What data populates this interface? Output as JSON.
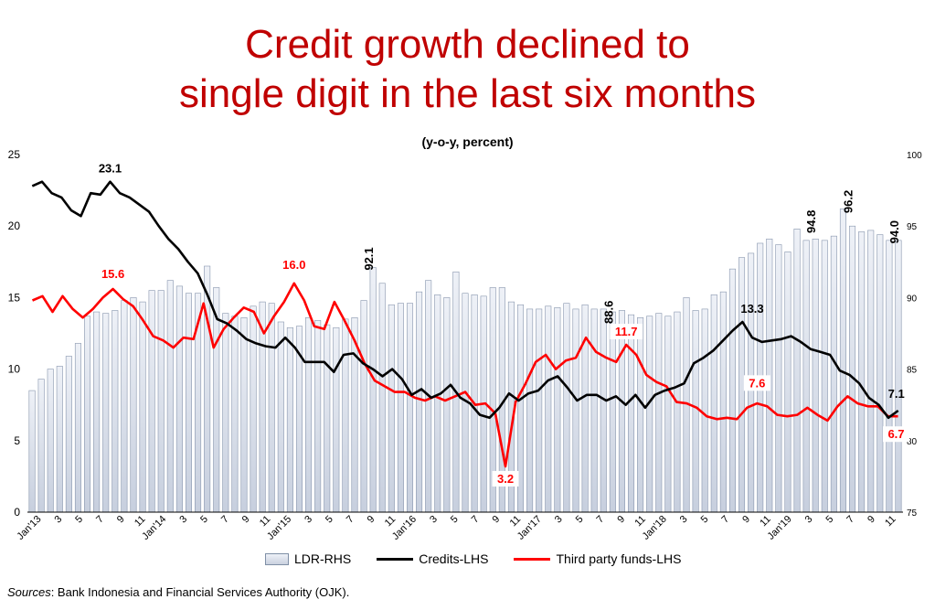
{
  "title_line1": "Credit growth declined to",
  "title_line2": "single digit in the last six months",
  "subtitle": "(y-o-y, percent)",
  "source_label": "Sources",
  "source_text": ": Bank Indonesia and Financial Services Authority (OJK).",
  "legend": {
    "ldr": "LDR-RHS",
    "credit": "Credits-LHS",
    "tpf": "Third party funds-LHS"
  },
  "colors": {
    "credit": "#000000",
    "tpf": "#ff0000",
    "bar_fill": "#d5dbe7",
    "bar_edge": "#8795ad",
    "label_red": "#ff0000"
  },
  "chart_data": {
    "type": "bar+line",
    "x_tick_labels": [
      "Jan'13",
      "3",
      "5",
      "7",
      "9",
      "11",
      "Jan'14",
      "3",
      "5",
      "7",
      "9",
      "11",
      "Jan'15",
      "3",
      "5",
      "7",
      "9",
      "11",
      "Jan'16",
      "3",
      "5",
      "7",
      "9",
      "11",
      "Jan'17",
      "3",
      "5",
      "7",
      "9",
      "11",
      "Jan'18",
      "3",
      "5",
      "7",
      "9",
      "11",
      "Jan'19",
      "3",
      "5",
      "7",
      "9",
      "11"
    ],
    "y_left": {
      "min": 0,
      "max": 25,
      "ticks": [
        0,
        5,
        10,
        15,
        20,
        25
      ]
    },
    "y_right": {
      "min": 75,
      "max": 100,
      "ticks": [
        75,
        80,
        85,
        90,
        95,
        100
      ]
    },
    "series": [
      {
        "name": "LDR-RHS",
        "axis": "right",
        "kind": "bar",
        "values": [
          83.5,
          84.3,
          85.0,
          85.2,
          85.9,
          86.8,
          88.7,
          89.0,
          88.9,
          89.1,
          89.8,
          90.0,
          89.7,
          90.5,
          90.5,
          91.2,
          90.8,
          90.3,
          90.3,
          92.2,
          90.7,
          88.9,
          88.7,
          88.6,
          89.4,
          89.7,
          89.6,
          88.3,
          87.9,
          88.0,
          88.6,
          88.4,
          88.1,
          87.9,
          88.5,
          88.6,
          89.8,
          92.1,
          91.0,
          89.5,
          89.6,
          89.6,
          90.4,
          91.2,
          90.2,
          90.0,
          91.8,
          90.3,
          90.2,
          90.1,
          90.7,
          90.7,
          89.7,
          89.5,
          89.2,
          89.2,
          89.4,
          89.3,
          89.6,
          89.2,
          89.5,
          89.2,
          89.2,
          89.0,
          89.1,
          88.8,
          88.6,
          88.7,
          88.9,
          88.7,
          89.0,
          90.0,
          89.1,
          89.2,
          90.2,
          90.4,
          92.0,
          92.8,
          93.1,
          93.8,
          94.1,
          93.7,
          93.2,
          94.8,
          94.0,
          94.1,
          94.0,
          94.3,
          96.2,
          95.0,
          94.6,
          94.7,
          94.4,
          94.0,
          94.0
        ],
        "labels": {
          "92.1": 37,
          "88.6": 63,
          "94.8": 85,
          "96.2": 89,
          "94.0": 94
        }
      },
      {
        "name": "Credits-LHS",
        "axis": "left",
        "kind": "line",
        "values": [
          22.8,
          23.1,
          22.3,
          22.0,
          21.1,
          20.7,
          22.3,
          22.2,
          23.1,
          22.3,
          22.0,
          21.5,
          21.0,
          20.0,
          19.1,
          18.4,
          17.5,
          16.7,
          15.2,
          13.5,
          13.2,
          12.7,
          12.1,
          11.8,
          11.6,
          11.5,
          12.2,
          11.5,
          10.5,
          10.5,
          10.5,
          9.8,
          11.0,
          11.1,
          10.4,
          10.0,
          9.5,
          10.0,
          9.3,
          8.2,
          8.6,
          8.0,
          8.3,
          8.9,
          8.0,
          7.6,
          6.8,
          6.6,
          7.3,
          8.3,
          7.8,
          8.3,
          8.5,
          9.2,
          9.5,
          8.7,
          7.8,
          8.2,
          8.2,
          7.8,
          8.1,
          7.5,
          8.2,
          7.3,
          8.2,
          8.5,
          8.7,
          9.0,
          10.4,
          10.8,
          11.3,
          12.0,
          12.7,
          13.3,
          12.2,
          11.9,
          12.0,
          12.1,
          12.3,
          11.9,
          11.4,
          11.2,
          11.0,
          9.9,
          9.6,
          9.0,
          8.0,
          7.5,
          6.6,
          7.1
        ],
        "labels": {
          "23.1": 8,
          "13.3": 74,
          "7.1": 89
        }
      },
      {
        "name": "Third party funds-LHS",
        "axis": "left",
        "kind": "line",
        "values": [
          14.8,
          15.1,
          14.0,
          15.1,
          14.2,
          13.6,
          14.2,
          15.0,
          15.6,
          14.9,
          14.4,
          13.4,
          12.3,
          12.0,
          11.5,
          12.2,
          12.1,
          14.6,
          11.5,
          12.8,
          13.6,
          14.3,
          14.0,
          12.5,
          13.7,
          14.7,
          16.0,
          14.8,
          13.0,
          12.8,
          14.7,
          13.4,
          12.0,
          10.4,
          9.2,
          8.8,
          8.4,
          8.4,
          8.0,
          7.8,
          8.1,
          7.8,
          8.1,
          8.4,
          7.5,
          7.6,
          6.9,
          3.2,
          7.7,
          9.0,
          10.5,
          11.0,
          10.0,
          10.6,
          10.8,
          12.2,
          11.2,
          10.8,
          10.5,
          11.7,
          11.0,
          9.6,
          9.1,
          8.8,
          7.7,
          7.6,
          7.3,
          6.7,
          6.5,
          6.6,
          6.5,
          7.3,
          7.6,
          7.4,
          6.8,
          6.7,
          6.8,
          7.3,
          6.8,
          6.4,
          7.4,
          8.1,
          7.6,
          7.4,
          7.4,
          6.7,
          6.7
        ],
        "labels": {
          "15.6": 8,
          "16.0": 26,
          "3.2": 47,
          "11.7": 59,
          "7.6": 72,
          "6.7": 86
        }
      }
    ],
    "label_texts": [
      "23.1",
      "15.6",
      "16.0",
      "92.1",
      "3.2",
      "88.6",
      "11.7",
      "13.3",
      "7.6",
      "94.8",
      "96.2",
      "94.0",
      "7.1",
      "6.7"
    ],
    "legend_position": "bottom",
    "grid": false
  }
}
